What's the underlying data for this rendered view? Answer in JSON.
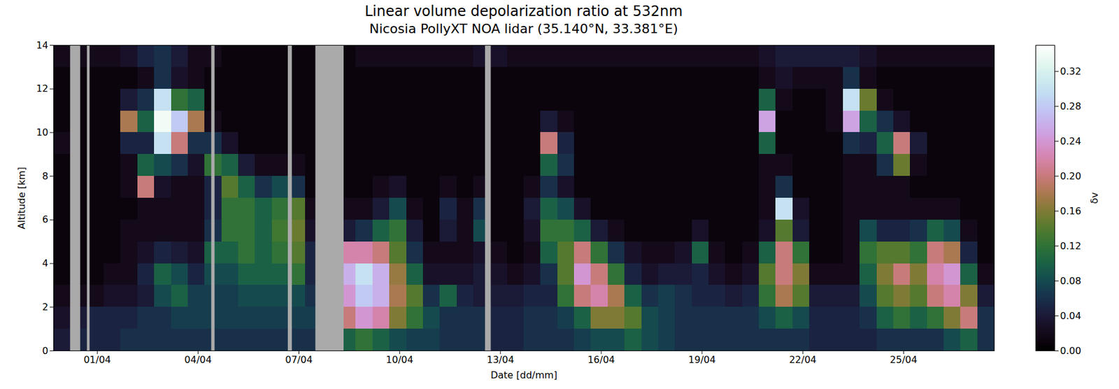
{
  "chart_data": {
    "type": "heatmap",
    "title": "Linear volume depolarization ratio at 532nm",
    "subtitle": "Nicosia PollyXT NOA lidar (35.140°N, 33.381°E)",
    "x_label": "Date [dd/mm]",
    "y_label": "Altitude [km]",
    "color": "cubehelix",
    "xlim": [
      -0.3,
      27.7
    ],
    "xticks": [
      {
        "value": 1,
        "label": "01/04"
      },
      {
        "value": 4,
        "label": "04/04"
      },
      {
        "value": 7,
        "label": "07/04"
      },
      {
        "value": 10,
        "label": "10/04"
      },
      {
        "value": 13,
        "label": "13/04"
      },
      {
        "value": 16,
        "label": "16/04"
      },
      {
        "value": 19,
        "label": "19/04"
      },
      {
        "value": 22,
        "label": "22/04"
      },
      {
        "value": 25,
        "label": "25/04"
      }
    ],
    "ylim": [
      0,
      14
    ],
    "yticks": [
      0,
      2,
      4,
      6,
      8,
      10,
      12,
      14
    ],
    "x_edges": [
      -0.3,
      0.2,
      0.7,
      1.2,
      1.7,
      2.2,
      2.7,
      3.2,
      3.7,
      4.2,
      4.7,
      5.2,
      5.7,
      6.2,
      6.7,
      7.2,
      7.7,
      8.2,
      8.7,
      9.2,
      9.7,
      10.2,
      10.7,
      11.2,
      11.7,
      12.2,
      12.7,
      13.2,
      13.7,
      14.2,
      14.7,
      15.2,
      15.7,
      16.2,
      16.7,
      17.2,
      17.7,
      18.2,
      18.7,
      19.2,
      19.7,
      20.2,
      20.7,
      21.2,
      21.7,
      22.2,
      22.7,
      23.2,
      23.7,
      24.2,
      24.7,
      25.2,
      25.7,
      26.2,
      26.7,
      27.2,
      27.7
    ],
    "y_edges": [
      0,
      1,
      2,
      3,
      4,
      5,
      6,
      7,
      8,
      9,
      10,
      11,
      12,
      13,
      14
    ],
    "values": [
      [
        0.04,
        0.03,
        0.02,
        0.01,
        0.01,
        0.01,
        0.01,
        0.01,
        0.01,
        0.02,
        0.01,
        0.01,
        0.01,
        0.02
      ],
      [
        0.05,
        0.04,
        0.02,
        0.01,
        0.01,
        0.01,
        0.01,
        0.01,
        0.01,
        0.01,
        0.01,
        0.01,
        0.01,
        0.02
      ],
      [
        0.05,
        0.05,
        0.02,
        0.01,
        0.01,
        0.01,
        0.01,
        0.01,
        0.01,
        0.01,
        0.01,
        0.01,
        0.01,
        0.02
      ],
      [
        0.05,
        0.05,
        0.03,
        0.02,
        0.01,
        0.01,
        0.01,
        0.01,
        0.01,
        0.01,
        0.01,
        0.01,
        0.01,
        0.02
      ],
      [
        0.06,
        0.05,
        0.03,
        0.02,
        0.02,
        0.02,
        0.01,
        0.02,
        0.02,
        0.05,
        0.18,
        0.04,
        0.01,
        0.03
      ],
      [
        0.06,
        0.06,
        0.04,
        0.05,
        0.03,
        0.02,
        0.02,
        0.2,
        0.1,
        0.05,
        0.1,
        0.06,
        0.02,
        0.05
      ],
      [
        0.06,
        0.06,
        0.08,
        0.1,
        0.05,
        0.02,
        0.02,
        0.03,
        0.08,
        0.3,
        0.34,
        0.3,
        0.06,
        0.06
      ],
      [
        0.06,
        0.07,
        0.1,
        0.08,
        0.04,
        0.02,
        0.02,
        0.02,
        0.06,
        0.2,
        0.28,
        0.12,
        0.03,
        0.04
      ],
      [
        0.06,
        0.07,
        0.07,
        0.05,
        0.03,
        0.02,
        0.02,
        0.02,
        0.03,
        0.06,
        0.18,
        0.1,
        0.02,
        0.02
      ],
      [
        0.06,
        0.07,
        0.07,
        0.08,
        0.1,
        0.06,
        0.05,
        0.05,
        0.12,
        0.06,
        0.02,
        0.01,
        0.01,
        0.02
      ],
      [
        0.06,
        0.07,
        0.07,
        0.08,
        0.1,
        0.12,
        0.12,
        0.14,
        0.1,
        0.03,
        0.01,
        0.01,
        0.01,
        0.01
      ],
      [
        0.06,
        0.07,
        0.08,
        0.1,
        0.12,
        0.12,
        0.12,
        0.1,
        0.04,
        0.01,
        0.01,
        0.01,
        0.01,
        0.01
      ],
      [
        0.06,
        0.07,
        0.08,
        0.1,
        0.1,
        0.1,
        0.1,
        0.06,
        0.02,
        0.01,
        0.01,
        0.01,
        0.01,
        0.01
      ],
      [
        0.06,
        0.07,
        0.08,
        0.1,
        0.12,
        0.13,
        0.12,
        0.08,
        0.02,
        0.01,
        0.01,
        0.01,
        0.01,
        0.01
      ],
      [
        0.06,
        0.07,
        0.08,
        0.12,
        0.14,
        0.15,
        0.14,
        0.06,
        0.02,
        0.01,
        0.01,
        0.01,
        0.01,
        0.01
      ],
      [
        0.06,
        0.07,
        0.06,
        0.05,
        0.05,
        0.03,
        0.02,
        0.01,
        0.01,
        0.01,
        0.01,
        0.01,
        0.01,
        0.01
      ],
      [
        0.07,
        0.08,
        0.1,
        0.1,
        0.06,
        0.02,
        0.01,
        0.01,
        0.01,
        0.01,
        0.01,
        0.01,
        0.01,
        0.01
      ],
      [
        0.1,
        0.2,
        0.24,
        0.26,
        0.22,
        0.04,
        0.02,
        0.01,
        0.01,
        0.01,
        0.01,
        0.01,
        0.01,
        0.01
      ],
      [
        0.12,
        0.24,
        0.28,
        0.3,
        0.22,
        0.06,
        0.02,
        0.01,
        0.01,
        0.01,
        0.01,
        0.01,
        0.01,
        0.02
      ],
      [
        0.1,
        0.22,
        0.26,
        0.26,
        0.2,
        0.1,
        0.04,
        0.02,
        0.01,
        0.01,
        0.01,
        0.01,
        0.01,
        0.02
      ],
      [
        0.08,
        0.16,
        0.18,
        0.17,
        0.14,
        0.12,
        0.08,
        0.03,
        0.01,
        0.01,
        0.01,
        0.01,
        0.01,
        0.02
      ],
      [
        0.07,
        0.12,
        0.14,
        0.1,
        0.06,
        0.04,
        0.02,
        0.01,
        0.01,
        0.01,
        0.01,
        0.01,
        0.01,
        0.02
      ],
      [
        0.07,
        0.08,
        0.06,
        0.03,
        0.02,
        0.01,
        0.01,
        0.01,
        0.01,
        0.01,
        0.01,
        0.01,
        0.01,
        0.02
      ],
      [
        0.06,
        0.06,
        0.1,
        0.03,
        0.02,
        0.04,
        0.05,
        0.02,
        0.01,
        0.01,
        0.01,
        0.01,
        0.01,
        0.02
      ],
      [
        0.06,
        0.06,
        0.05,
        0.03,
        0.02,
        0.02,
        0.02,
        0.01,
        0.01,
        0.01,
        0.01,
        0.01,
        0.01,
        0.02
      ],
      [
        0.06,
        0.06,
        0.04,
        0.04,
        0.03,
        0.08,
        0.06,
        0.02,
        0.01,
        0.01,
        0.01,
        0.01,
        0.01,
        0.03
      ],
      [
        0.05,
        0.05,
        0.04,
        0.03,
        0.02,
        0.01,
        0.01,
        0.01,
        0.01,
        0.01,
        0.01,
        0.01,
        0.01,
        0.03
      ],
      [
        0.05,
        0.05,
        0.04,
        0.02,
        0.01,
        0.01,
        0.01,
        0.01,
        0.01,
        0.01,
        0.01,
        0.01,
        0.01,
        0.02
      ],
      [
        0.06,
        0.06,
        0.05,
        0.03,
        0.02,
        0.03,
        0.04,
        0.02,
        0.01,
        0.01,
        0.01,
        0.01,
        0.01,
        0.02
      ],
      [
        0.06,
        0.06,
        0.05,
        0.06,
        0.1,
        0.12,
        0.1,
        0.06,
        0.1,
        0.2,
        0.04,
        0.01,
        0.01,
        0.02
      ],
      [
        0.06,
        0.07,
        0.12,
        0.14,
        0.14,
        0.12,
        0.08,
        0.03,
        0.06,
        0.05,
        0.02,
        0.01,
        0.01,
        0.02
      ],
      [
        0.07,
        0.1,
        0.2,
        0.24,
        0.2,
        0.1,
        0.03,
        0.01,
        0.01,
        0.01,
        0.01,
        0.01,
        0.01,
        0.02
      ],
      [
        0.08,
        0.16,
        0.22,
        0.2,
        0.12,
        0.04,
        0.01,
        0.01,
        0.01,
        0.01,
        0.01,
        0.01,
        0.01,
        0.02
      ],
      [
        0.08,
        0.16,
        0.18,
        0.12,
        0.06,
        0.02,
        0.01,
        0.01,
        0.01,
        0.01,
        0.01,
        0.01,
        0.01,
        0.02
      ],
      [
        0.1,
        0.14,
        0.1,
        0.05,
        0.03,
        0.01,
        0.01,
        0.01,
        0.01,
        0.01,
        0.01,
        0.01,
        0.01,
        0.02
      ],
      [
        0.08,
        0.08,
        0.06,
        0.03,
        0.02,
        0.01,
        0.01,
        0.01,
        0.01,
        0.01,
        0.01,
        0.01,
        0.01,
        0.02
      ],
      [
        0.07,
        0.07,
        0.07,
        0.04,
        0.02,
        0.01,
        0.01,
        0.01,
        0.01,
        0.01,
        0.01,
        0.01,
        0.01,
        0.02
      ],
      [
        0.06,
        0.06,
        0.06,
        0.04,
        0.03,
        0.01,
        0.01,
        0.01,
        0.01,
        0.01,
        0.01,
        0.01,
        0.01,
        0.02
      ],
      [
        0.06,
        0.06,
        0.05,
        0.05,
        0.1,
        0.03,
        0.01,
        0.01,
        0.01,
        0.01,
        0.01,
        0.01,
        0.01,
        0.02
      ],
      [
        0.06,
        0.06,
        0.05,
        0.03,
        0.02,
        0.01,
        0.01,
        0.01,
        0.01,
        0.01,
        0.01,
        0.01,
        0.01,
        0.02
      ],
      [
        0.06,
        0.06,
        0.04,
        0.02,
        0.01,
        0.01,
        0.01,
        0.01,
        0.01,
        0.01,
        0.01,
        0.01,
        0.01,
        0.02
      ],
      [
        0.06,
        0.06,
        0.05,
        0.03,
        0.02,
        0.01,
        0.01,
        0.01,
        0.01,
        0.01,
        0.01,
        0.01,
        0.01,
        0.02
      ],
      [
        0.06,
        0.08,
        0.12,
        0.14,
        0.1,
        0.03,
        0.02,
        0.02,
        0.02,
        0.1,
        0.25,
        0.1,
        0.02,
        0.03
      ],
      [
        0.06,
        0.1,
        0.18,
        0.2,
        0.2,
        0.14,
        0.3,
        0.06,
        0.02,
        0.01,
        0.01,
        0.02,
        0.03,
        0.04
      ],
      [
        0.06,
        0.08,
        0.14,
        0.16,
        0.12,
        0.04,
        0.03,
        0.01,
        0.01,
        0.01,
        0.01,
        0.01,
        0.02,
        0.04
      ],
      [
        0.05,
        0.05,
        0.04,
        0.02,
        0.01,
        0.01,
        0.01,
        0.01,
        0.01,
        0.01,
        0.01,
        0.01,
        0.02,
        0.04
      ],
      [
        0.05,
        0.05,
        0.04,
        0.02,
        0.01,
        0.01,
        0.01,
        0.01,
        0.01,
        0.01,
        0.02,
        0.02,
        0.02,
        0.04
      ],
      [
        0.05,
        0.05,
        0.04,
        0.02,
        0.02,
        0.02,
        0.02,
        0.02,
        0.02,
        0.06,
        0.25,
        0.3,
        0.06,
        0.04
      ],
      [
        0.05,
        0.06,
        0.08,
        0.1,
        0.12,
        0.08,
        0.02,
        0.02,
        0.02,
        0.05,
        0.1,
        0.15,
        0.02,
        0.03
      ],
      [
        0.06,
        0.1,
        0.14,
        0.16,
        0.14,
        0.05,
        0.02,
        0.02,
        0.06,
        0.1,
        0.06,
        0.02,
        0.01,
        0.02
      ],
      [
        0.06,
        0.12,
        0.16,
        0.2,
        0.14,
        0.05,
        0.02,
        0.02,
        0.15,
        0.2,
        0.03,
        0.01,
        0.01,
        0.02
      ],
      [
        0.06,
        0.1,
        0.14,
        0.16,
        0.12,
        0.06,
        0.02,
        0.01,
        0.02,
        0.04,
        0.01,
        0.01,
        0.01,
        0.02
      ],
      [
        0.06,
        0.12,
        0.2,
        0.22,
        0.2,
        0.1,
        0.02,
        0.01,
        0.01,
        0.01,
        0.01,
        0.01,
        0.01,
        0.02
      ],
      [
        0.08,
        0.16,
        0.22,
        0.24,
        0.18,
        0.08,
        0.02,
        0.01,
        0.01,
        0.01,
        0.01,
        0.01,
        0.01,
        0.02
      ],
      [
        0.1,
        0.2,
        0.16,
        0.1,
        0.05,
        0.02,
        0.01,
        0.01,
        0.01,
        0.01,
        0.01,
        0.01,
        0.01,
        0.02
      ],
      [
        0.06,
        0.06,
        0.04,
        0.02,
        0.01,
        0.01,
        0.01,
        0.01,
        0.01,
        0.01,
        0.01,
        0.01,
        0.01,
        0.02
      ]
    ],
    "no_data": [
      [
        0.2,
        0.5
      ],
      [
        0.7,
        0.78
      ],
      [
        4.4,
        4.5
      ],
      [
        6.68,
        6.8
      ],
      [
        7.5,
        8.34
      ],
      [
        12.55,
        12.72
      ]
    ],
    "colorbar": {
      "label": "δv",
      "range": [
        0,
        0.35
      ],
      "ticks": [
        {
          "value": 0,
          "label": "0.00"
        },
        0.04,
        0.08,
        0.12,
        0.16,
        {
          "value": 0.2,
          "label": "0.20"
        },
        0.24,
        0.28,
        0.32
      ]
    }
  }
}
